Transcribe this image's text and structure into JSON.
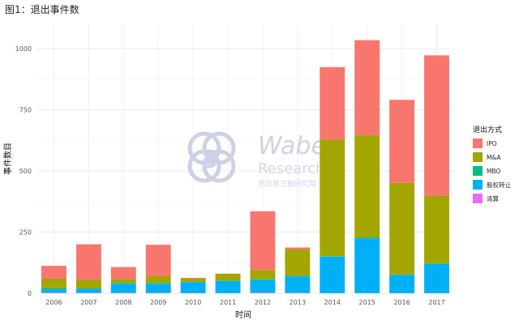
{
  "figure": {
    "title": "图1：退出事件数"
  },
  "watermark": {
    "brand": "Wabei",
    "sub": "Research",
    "cn": "挖贝新三板研究院"
  },
  "chart_data": {
    "type": "bar",
    "stacked": true,
    "xlabel": "时间",
    "ylabel": "事件数目",
    "ylim": [
      0,
      1100
    ],
    "yticks": [
      0,
      250,
      500,
      750,
      1000
    ],
    "grid": true,
    "legend_title": "退出方式",
    "legend_position": "right",
    "categories": [
      "2006",
      "2007",
      "2008",
      "2009",
      "2010",
      "2011",
      "2012",
      "2013",
      "2014",
      "2015",
      "2016",
      "2017"
    ],
    "series": [
      {
        "name": "清算",
        "color": "#e76bf3",
        "values": [
          2,
          2,
          1,
          1,
          0,
          0,
          2,
          1,
          0,
          0,
          0,
          0
        ]
      },
      {
        "name": "股权转让",
        "color": "#00b0f6",
        "values": [
          14,
          15,
          38,
          38,
          45,
          50,
          52,
          68,
          150,
          225,
          75,
          120
        ]
      },
      {
        "name": "MBO",
        "color": "#00bf7d",
        "values": [
          4,
          3,
          2,
          2,
          1,
          1,
          3,
          2,
          1,
          2,
          1,
          1
        ]
      },
      {
        "name": "M&A",
        "color": "#a3a500",
        "values": [
          40,
          35,
          18,
          30,
          14,
          29,
          38,
          108,
          477,
          420,
          375,
          277
        ]
      },
      {
        "name": "IPO",
        "color": "#f8766d",
        "values": [
          52,
          145,
          48,
          127,
          3,
          0,
          240,
          8,
          297,
          388,
          340,
          575
        ]
      }
    ]
  }
}
